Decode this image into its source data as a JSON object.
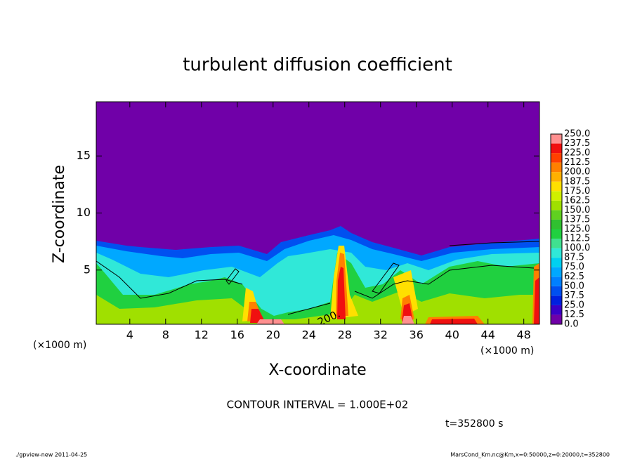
{
  "chart_data": {
    "type": "contour",
    "title": "turbulent diffusion coefficient",
    "x_label": "X-coordinate",
    "y_label": "Z-coordinate",
    "x_unit": "(×1000 m)",
    "y_unit": "(×1000 m)",
    "contour_interval": "CONTOUR INTERVAL = 1.000E+02",
    "time": "t=352800 s",
    "contour_label": "200.",
    "footer_left": "./gpview-new  2011-04-25",
    "footer_right": "MarsCond_Km.nc@Km,x=0:50000,z=0:20000,t=352800",
    "xlim": [
      0.25,
      49.75
    ],
    "ylim": [
      0.25,
      19.75
    ],
    "xticks": [
      4,
      8,
      12,
      16,
      20,
      24,
      28,
      32,
      36,
      40,
      44,
      48
    ],
    "yticks": [
      5,
      10,
      15
    ],
    "colorbar_ticks": [
      {
        "value": 0,
        "label": "0.0"
      },
      {
        "value": 12.5,
        "label": "12.5"
      },
      {
        "value": 25,
        "label": "25.0"
      },
      {
        "value": 37.5,
        "label": "37.5"
      },
      {
        "value": 50,
        "label": "50.0"
      },
      {
        "value": 62.5,
        "label": "62.5"
      },
      {
        "value": 75,
        "label": "75.0"
      },
      {
        "value": 87.5,
        "label": "87.5"
      },
      {
        "value": 100,
        "label": "100.0"
      },
      {
        "value": 112.5,
        "label": "112.5"
      },
      {
        "value": 125,
        "label": "125.0"
      },
      {
        "value": 137.5,
        "label": "137.5"
      },
      {
        "value": 150,
        "label": "150.0"
      },
      {
        "value": 162.5,
        "label": "162.5"
      },
      {
        "value": 175,
        "label": "175.0"
      },
      {
        "value": 187.5,
        "label": "187.5"
      },
      {
        "value": 200,
        "label": "200.0"
      },
      {
        "value": 212.5,
        "label": "212.5"
      },
      {
        "value": 225,
        "label": "225.0"
      },
      {
        "value": 237.5,
        "label": "237.5"
      },
      {
        "value": 250,
        "label": "250.0"
      }
    ],
    "colors": [
      "#7000a8",
      "#3a00c8",
      "#0020e0",
      "#0050f0",
      "#0080ff",
      "#00a8ff",
      "#00d0f0",
      "#30e8d8",
      "#40e090",
      "#20d040",
      "#30c030",
      "#60d020",
      "#a0e000",
      "#d0f000",
      "#ffe000",
      "#ffb000",
      "#ff8000",
      "#ff4000",
      "#f01010",
      "#ff9090"
    ]
  }
}
